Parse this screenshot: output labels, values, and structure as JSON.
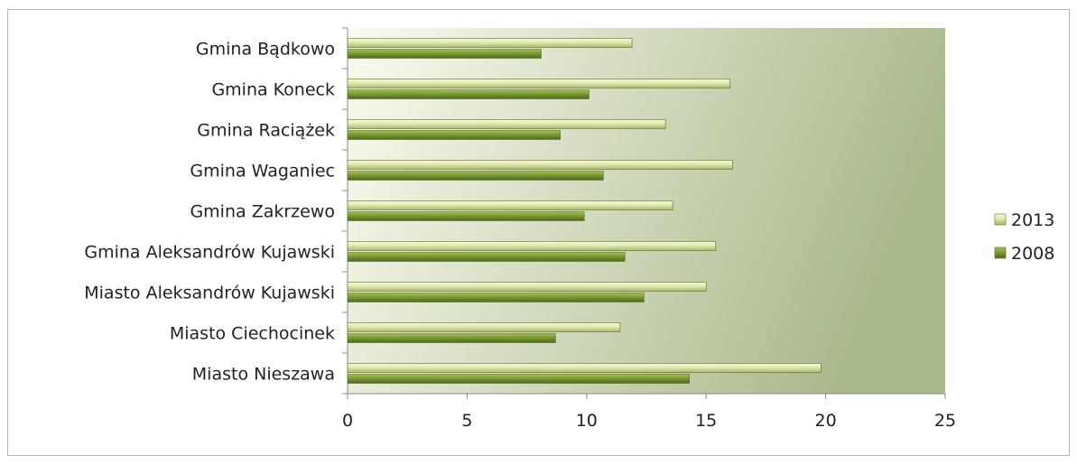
{
  "chart_data": {
    "type": "bar",
    "orientation": "horizontal",
    "categories": [
      "Gmina Bądkowo",
      "Gmina Koneck",
      "Gmina Raciążek",
      "Gmina Waganiec",
      "Gmina Zakrzewo",
      "Gmina Aleksandrów Kujawski",
      "Miasto Aleksandrów Kujawski",
      "Miasto Ciechocinek",
      "Miasto Nieszawa"
    ],
    "series": [
      {
        "name": "2013",
        "values": [
          11.9,
          16.0,
          13.3,
          16.1,
          13.6,
          15.4,
          15.0,
          11.4,
          19.8
        ]
      },
      {
        "name": "2008",
        "values": [
          8.1,
          10.1,
          8.9,
          10.7,
          9.9,
          11.6,
          12.4,
          8.7,
          14.3
        ]
      }
    ],
    "xlim": [
      0,
      25
    ],
    "xticks": [
      "0",
      "5",
      "10",
      "15",
      "20",
      "25"
    ],
    "title": "",
    "xlabel": "",
    "ylabel": "",
    "grid": false,
    "legend_position": "right",
    "colors": {
      "2013": "#dfe6a6",
      "2008": "#7b9a32",
      "plot_background_left": "#fbfbf0",
      "plot_background_right": "#aab98c"
    }
  }
}
